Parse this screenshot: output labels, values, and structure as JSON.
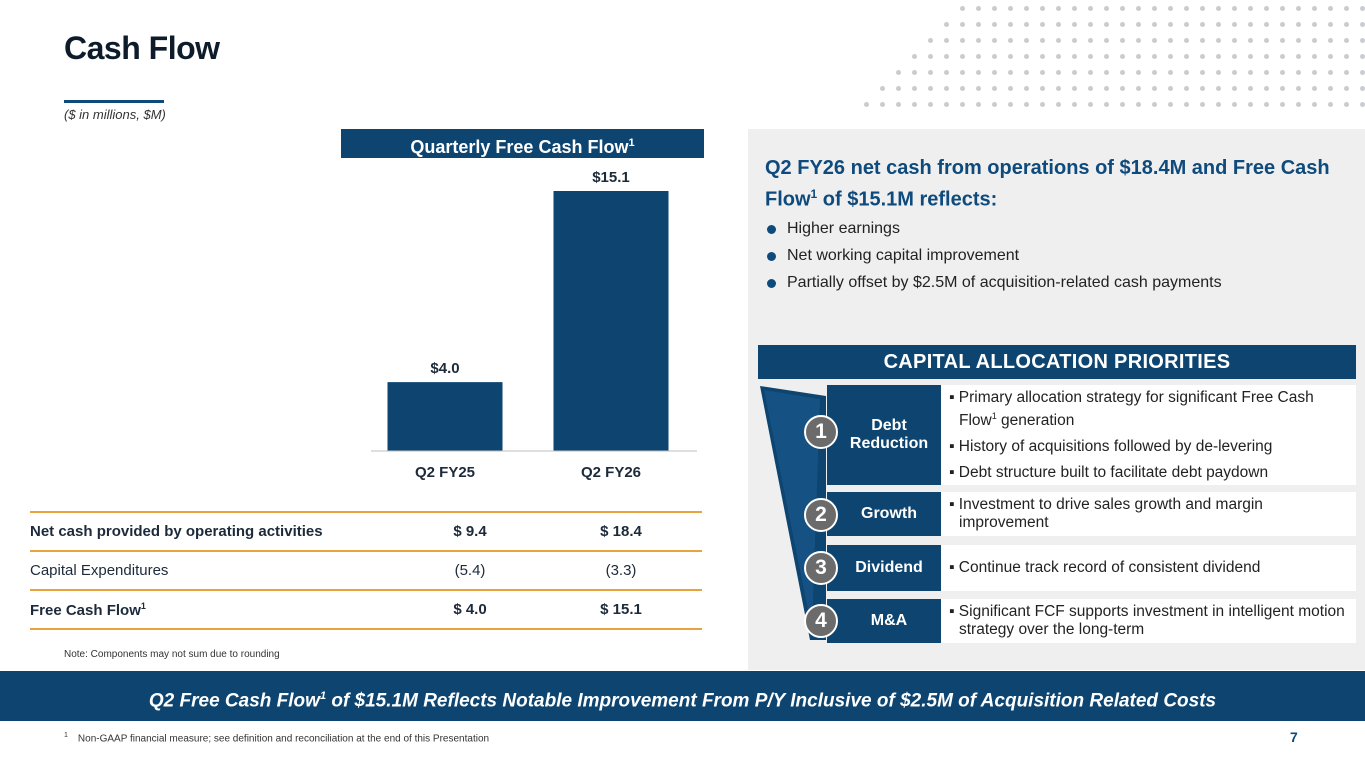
{
  "title": "Cash Flow",
  "units": "($ in millions, $M)",
  "chart_header": {
    "text": "Quarterly Free Cash Flow",
    "sup": "1"
  },
  "chart_data": {
    "type": "bar",
    "title": "Quarterly Free Cash Flow",
    "categories": [
      "Q2 FY25",
      "Q2 FY26"
    ],
    "values": [
      4.0,
      15.1
    ],
    "data_labels": [
      "$4.0",
      "$15.1"
    ],
    "ylim": [
      0,
      15.1
    ],
    "grid": false,
    "legend": "none",
    "colors": {
      "bar": "#0d4470"
    }
  },
  "table": {
    "rows": [
      {
        "label": "Net cash provided by operating activities",
        "v1": "$ 9.4",
        "v2": "$ 18.4"
      },
      {
        "label": "Capital Expenditures",
        "v1": "(5.4)",
        "v2": "(3.3)"
      },
      {
        "label": "Free Cash Flow",
        "sup": "1",
        "v1": "$ 4.0",
        "v2": "$ 15.1"
      }
    ]
  },
  "note": "Note: Components may not sum due to rounding",
  "right": {
    "title_part1": "Q2 FY26 net cash from operations of $18.4M and Free Cash Flow",
    "title_sup": "1",
    "title_part2": " of $15.1M reflects:",
    "bullets": [
      "Higher earnings",
      "Net working capital improvement",
      "Partially offset by $2.5M of acquisition-related cash payments"
    ]
  },
  "capital": {
    "header": "CAPITAL ALLOCATION PRIORITIES",
    "priorities": [
      {
        "num": "1",
        "label": "Debt Reduction",
        "desc_a": "▪ Primary allocation strategy for significant Free Cash Flow",
        "desc_sup": "1",
        "desc_b": " generation",
        "desc_2": "▪ History of acquisitions followed by de-levering",
        "desc_3": "▪ Debt structure built to facilitate debt paydown"
      },
      {
        "num": "2",
        "label": "Growth",
        "desc": "▪ Investment to drive sales growth and margin improvement"
      },
      {
        "num": "3",
        "label": "Dividend",
        "desc": "▪ Continue track record of consistent dividend"
      },
      {
        "num": "4",
        "label": "M&A",
        "desc": "▪ Significant FCF supports investment in intelligent motion strategy over the long-term"
      }
    ]
  },
  "banner": {
    "part1": "Q2 Free Cash Flow",
    "sup": "1",
    "part2": " of $15.1M Reflects Notable Improvement From P/Y Inclusive of $2.5M of Acquisition Related Costs"
  },
  "footnote": {
    "sup": "1",
    "text": "Non-GAAP financial measure; see definition and reconciliation at the end of this Presentation"
  },
  "page_number": "7",
  "colors": {
    "navy": "#0d4470",
    "accent_blue": "#0e4a7c",
    "gold": "#e8a33c",
    "panel": "#efefef",
    "circle": "#6b6b6b"
  }
}
